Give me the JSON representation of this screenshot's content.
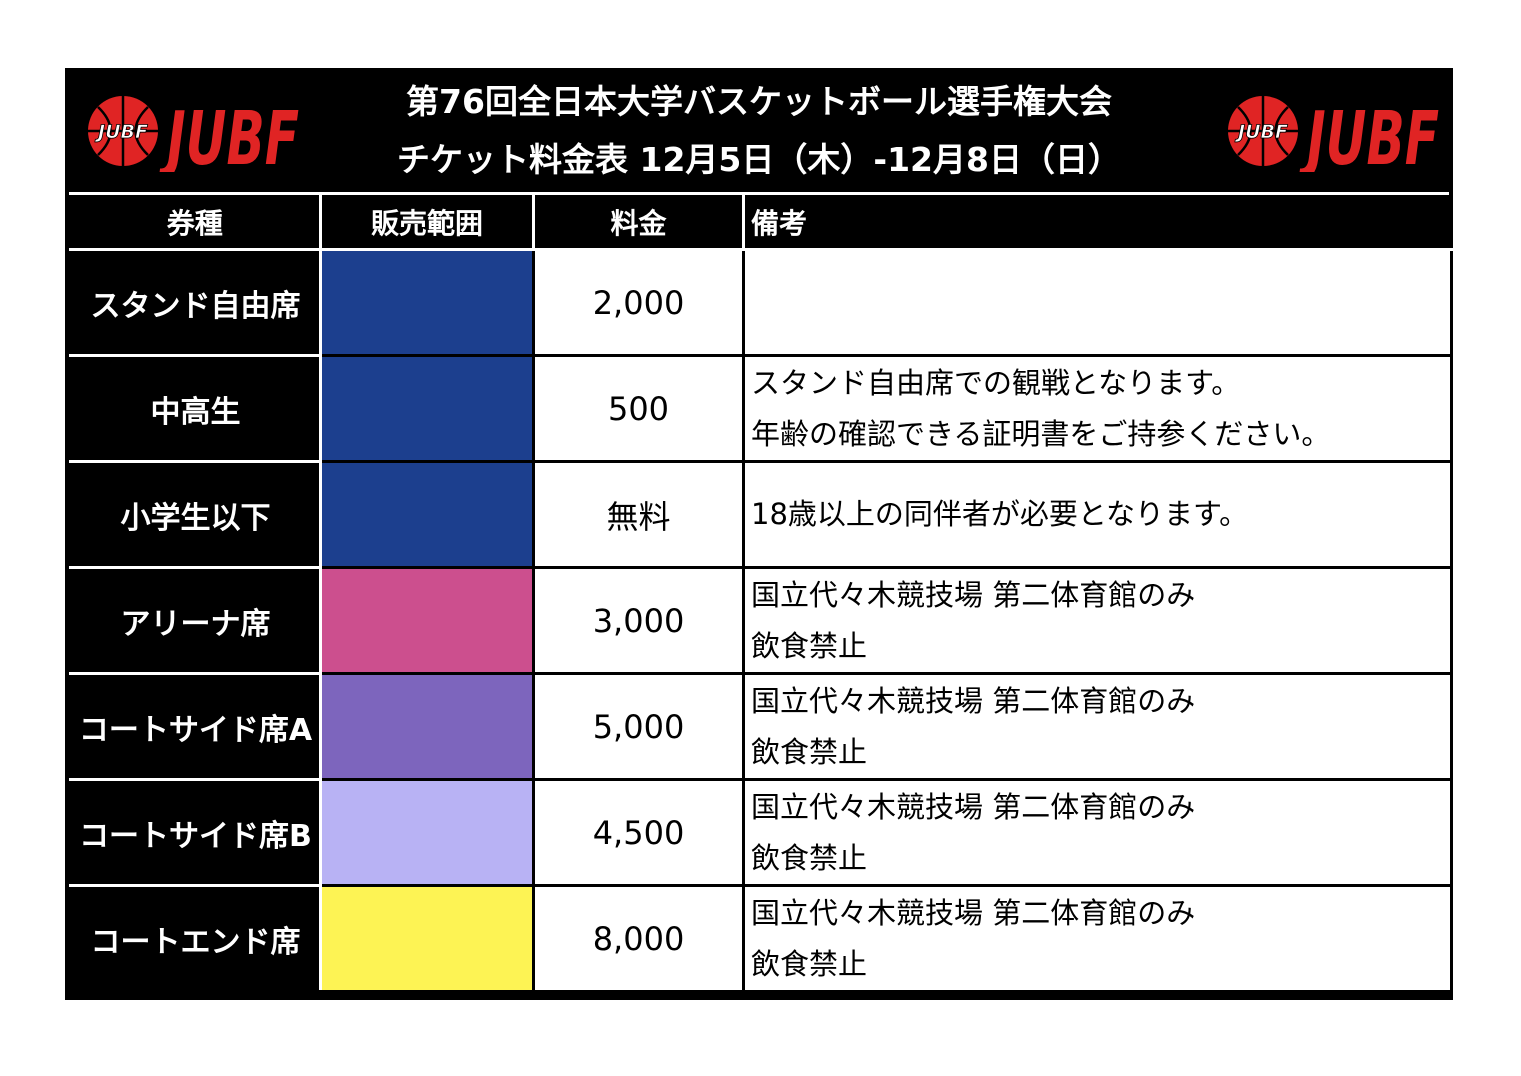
{
  "header": {
    "title_line1": "第76回全日本大学バスケットボール選手権大会",
    "title_line2": "チケット料金表 12月5日（木）-12月8日（日）",
    "logo_text": "JUBF",
    "ball_text": "JUBF"
  },
  "table": {
    "columns": [
      "券種",
      "販売範囲",
      "料金",
      "備考"
    ],
    "rows": [
      {
        "type": "スタンド自由席",
        "color": "#1c3f8e",
        "price": "2,000",
        "note1": "",
        "note2": ""
      },
      {
        "type": "中高生",
        "color": "#1c3f8e",
        "price": "500",
        "note1": "スタンド自由席での観戦となります。",
        "note2": "年齢の確認できる証明書をご持参ください。"
      },
      {
        "type": "小学生以下",
        "color": "#1c3f8e",
        "price": "無料",
        "note1": "18歳以上の同伴者が必要となります。",
        "note2": ""
      },
      {
        "type": "アリーナ席",
        "color": "#cc4f8e",
        "price": "3,000",
        "note1": "国立代々木競技場 第二体育館のみ",
        "note2": "飲食禁止"
      },
      {
        "type": "コートサイド席A",
        "color": "#7d65bd",
        "price": "5,000",
        "note1": "国立代々木競技場 第二体育館のみ",
        "note2": "飲食禁止"
      },
      {
        "type": "コートサイド席B",
        "color": "#b8b2f4",
        "price": "4,500",
        "note1": "国立代々木競技場 第二体育館のみ",
        "note2": "飲食禁止"
      },
      {
        "type": "コートエンド席",
        "color": "#fdf354",
        "price": "8,000",
        "note1": "国立代々木競技場 第二体育館のみ",
        "note2": "飲食禁止"
      }
    ]
  },
  "colors": {
    "logo_red": "#e02424",
    "background": "#000000"
  }
}
